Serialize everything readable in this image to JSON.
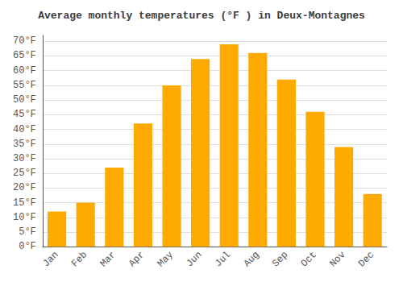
{
  "chart_data": {
    "type": "bar",
    "title": "Average monthly temperatures (°F ) in Deux-Montagnes",
    "categories": [
      "Jan",
      "Feb",
      "Mar",
      "Apr",
      "May",
      "Jun",
      "Jul",
      "Aug",
      "Sep",
      "Oct",
      "Nov",
      "Dec"
    ],
    "values": [
      12,
      15,
      27,
      42,
      55,
      64,
      69,
      66,
      57,
      46,
      34,
      18
    ],
    "color": "#FFAA00",
    "ylim": [
      0,
      72
    ],
    "yticks": [
      {
        "value": 0,
        "label": "0°F"
      },
      {
        "value": 5,
        "label": "5°F"
      },
      {
        "value": 10,
        "label": "10°F"
      },
      {
        "value": 15,
        "label": "15°F"
      },
      {
        "value": 20,
        "label": "20°F"
      },
      {
        "value": 25,
        "label": "25°F"
      },
      {
        "value": 30,
        "label": "30°F"
      },
      {
        "value": 35,
        "label": "35°F"
      },
      {
        "value": 40,
        "label": "40°F"
      },
      {
        "value": 45,
        "label": "45°F"
      },
      {
        "value": 50,
        "label": "50°F"
      },
      {
        "value": 55,
        "label": "55°F"
      },
      {
        "value": 60,
        "label": "60°F"
      },
      {
        "value": 65,
        "label": "65°F"
      },
      {
        "value": 70,
        "label": "70°F"
      }
    ],
    "grid": true
  }
}
